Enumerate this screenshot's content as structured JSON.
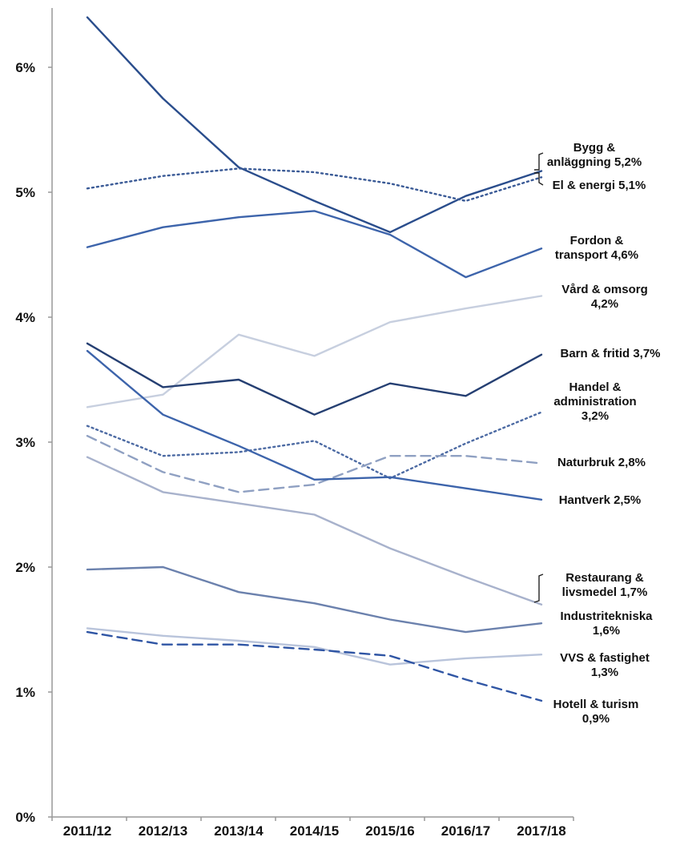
{
  "chart_data": {
    "type": "line",
    "title": "",
    "xlabel": "",
    "ylabel": "",
    "ylim": [
      0,
      6.5
    ],
    "yticks": [
      0,
      1,
      2,
      3,
      4,
      5,
      6
    ],
    "ytick_labels": [
      "0%",
      "1%",
      "2%",
      "3%",
      "4%",
      "5%",
      "6%"
    ],
    "grid": false,
    "legend": "none",
    "categories": [
      "2011/12",
      "2012/13",
      "2013/14",
      "2014/15",
      "2015/16",
      "2016/17",
      "2017/18"
    ],
    "series": [
      {
        "label_lines": [
          "Bygg &",
          "anläggning 5,2%"
        ],
        "values": [
          6.4,
          5.75,
          5.2,
          4.93,
          4.68,
          4.97,
          5.17
        ],
        "color": "#2a4d8c",
        "dash": "solid"
      },
      {
        "label_lines": [
          "El & energi 5,1%"
        ],
        "values": [
          5.03,
          5.13,
          5.19,
          5.16,
          5.07,
          4.93,
          5.12
        ],
        "color": "#3a5a96",
        "dash": "dotted"
      },
      {
        "label_lines": [
          "Fordon &",
          "transport 4,6%"
        ],
        "values": [
          4.56,
          4.72,
          4.8,
          4.85,
          4.66,
          4.32,
          4.55
        ],
        "color": "#3d64ab",
        "dash": "solid"
      },
      {
        "label_lines": [
          "Vård & omsorg",
          "4,2%"
        ],
        "values": [
          3.28,
          3.38,
          3.86,
          3.69,
          3.96,
          4.07,
          4.17
        ],
        "color": "#c7cfdf",
        "dash": "solid"
      },
      {
        "label_lines": [
          "Barn & fritid 3,7%"
        ],
        "values": [
          3.79,
          3.44,
          3.5,
          3.22,
          3.47,
          3.37,
          3.7
        ],
        "color": "#253f72",
        "dash": "solid"
      },
      {
        "label_lines": [
          "Handel &",
          "administration",
          "3,2%"
        ],
        "values": [
          3.13,
          2.89,
          2.92,
          3.01,
          2.71,
          2.99,
          3.24
        ],
        "color": "#4c6aa3",
        "dash": "dotted"
      },
      {
        "label_lines": [
          "Naturbruk 2,8%"
        ],
        "values": [
          3.05,
          2.76,
          2.6,
          2.66,
          2.89,
          2.89,
          2.83
        ],
        "color": "#8fa0c2",
        "dash": "dashed"
      },
      {
        "label_lines": [
          "Hantverk 2,5%"
        ],
        "values": [
          3.73,
          3.22,
          2.97,
          2.7,
          2.72,
          2.63,
          2.54
        ],
        "color": "#3d64ab",
        "dash": "solid"
      },
      {
        "label_lines": [
          "Restaurang &",
          "livsmedel 1,7%"
        ],
        "values": [
          2.88,
          2.6,
          2.51,
          2.42,
          2.15,
          1.92,
          1.7
        ],
        "color": "#a8b2cc",
        "dash": "solid"
      },
      {
        "label_lines": [
          "Industritekniska",
          "1,6%"
        ],
        "values": [
          1.98,
          2.0,
          1.8,
          1.71,
          1.58,
          1.48,
          1.55
        ],
        "color": "#6b81ad",
        "dash": "solid"
      },
      {
        "label_lines": [
          "VVS & fastighet",
          "1,3%"
        ],
        "values": [
          1.51,
          1.45,
          1.41,
          1.36,
          1.22,
          1.27,
          1.3
        ],
        "color": "#b9c4db",
        "dash": "solid"
      },
      {
        "label_lines": [
          "Hotell & turism",
          "0,9%"
        ],
        "values": [
          1.48,
          1.38,
          1.38,
          1.34,
          1.29,
          1.1,
          0.93
        ],
        "color": "#2f55a4",
        "dash": "dashed"
      }
    ]
  }
}
